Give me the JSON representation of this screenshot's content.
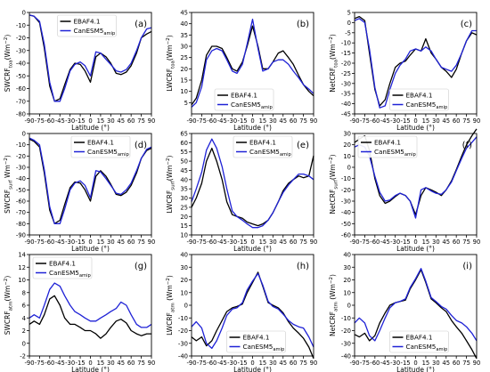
{
  "figure": {
    "xticks": [
      -90,
      -75,
      -60,
      -45,
      -30,
      -15,
      0,
      15,
      30,
      45,
      60,
      75,
      90
    ],
    "xlabel": "Latitude (°)",
    "series_names": [
      "EBAF4.1",
      "CanESM5"
    ],
    "series_subscript": [
      "",
      "amip"
    ],
    "colors": {
      "EBAF4.1": "#000000",
      "CanESM5": "#1f22d6"
    }
  },
  "chart_data": [
    {
      "type": "line",
      "panel": "(a)",
      "ylabel_main": "SWCRF",
      "ylabel_sub": "toa",
      "ylabel_unit": "(Wm",
      "ylim": [
        -80,
        0
      ],
      "yticks": [
        0,
        -10,
        -20,
        -30,
        -40,
        -50,
        -60,
        -70,
        -80
      ],
      "legend": "top-center",
      "x": [
        -90,
        -83,
        -75,
        -68,
        -60,
        -53,
        -45,
        -38,
        -30,
        -23,
        -15,
        -8,
        0,
        8,
        15,
        23,
        30,
        38,
        45,
        53,
        60,
        68,
        75,
        83,
        90
      ],
      "series": [
        {
          "name": "EBAF4.1",
          "values": [
            -2,
            -3,
            -8,
            -28,
            -58,
            -70,
            -68,
            -57,
            -45,
            -40,
            -41,
            -46,
            -55,
            -35,
            -32,
            -35,
            -40,
            -48,
            -49,
            -47,
            -42,
            -32,
            -20,
            -17,
            -15
          ]
        },
        {
          "name": "CanESM5",
          "values": [
            -2,
            -3,
            -7,
            -25,
            -55,
            -70,
            -70,
            -60,
            -46,
            -41,
            -39,
            -42,
            -50,
            -31,
            -32,
            -37,
            -41,
            -46,
            -47,
            -45,
            -40,
            -30,
            -20,
            -13,
            -12
          ]
        }
      ]
    },
    {
      "type": "line",
      "panel": "(b)",
      "ylabel_main": "LWCRF",
      "ylabel_sub": "toa",
      "ylabel_unit": "(Wm",
      "ylim": [
        0,
        45
      ],
      "yticks": [
        5,
        10,
        15,
        20,
        25,
        30,
        35,
        40,
        45
      ],
      "legend": "bottom-left",
      "x": [
        -90,
        -83,
        -75,
        -68,
        -60,
        -53,
        -45,
        -38,
        -30,
        -23,
        -15,
        -8,
        0,
        8,
        15,
        23,
        30,
        38,
        45,
        53,
        60,
        68,
        75,
        83,
        90
      ],
      "series": [
        {
          "name": "EBAF4.1",
          "values": [
            4,
            7,
            15,
            26,
            30,
            30,
            29,
            25,
            20,
            19,
            23,
            30,
            39,
            30,
            20,
            20,
            23,
            27,
            28,
            25,
            22,
            17,
            13,
            10,
            8
          ]
        },
        {
          "name": "CanESM5",
          "values": [
            3,
            5,
            12,
            24,
            28,
            29,
            28,
            24,
            19,
            18,
            22,
            31,
            42,
            29,
            19,
            20,
            23,
            24,
            24,
            22,
            19,
            16,
            13,
            11,
            9
          ]
        }
      ]
    },
    {
      "type": "line",
      "panel": "(c)",
      "ylabel_main": "NetCRF",
      "ylabel_sub": "toa",
      "ylabel_unit": "(Wm",
      "ylim": [
        -45,
        5
      ],
      "yticks": [
        5,
        0,
        -5,
        -10,
        -15,
        -20,
        -25,
        -30,
        -35,
        -40,
        -45
      ],
      "legend": "bottom-center",
      "x": [
        -90,
        -83,
        -75,
        -68,
        -60,
        -53,
        -45,
        -38,
        -30,
        -23,
        -15,
        -8,
        0,
        8,
        15,
        23,
        30,
        38,
        45,
        53,
        60,
        68,
        75,
        83,
        90
      ],
      "series": [
        {
          "name": "EBAF4.1",
          "values": [
            2,
            3,
            1,
            -15,
            -33,
            -41,
            -38,
            -30,
            -22,
            -20,
            -19,
            -16,
            -13,
            -14,
            -8,
            -15,
            -18,
            -22,
            -24,
            -27,
            -23,
            -15,
            -9,
            -5,
            -6
          ]
        },
        {
          "name": "CanESM5",
          "values": [
            1,
            2,
            0,
            -13,
            -32,
            -42,
            -41,
            -33,
            -25,
            -21,
            -18,
            -14,
            -13,
            -14,
            -12,
            -14,
            -18,
            -22,
            -23,
            -24,
            -21,
            -15,
            -9,
            -4,
            -4
          ]
        }
      ]
    },
    {
      "type": "line",
      "panel": "(d)",
      "ylabel_main": "SWCRF",
      "ylabel_sub": "surf",
      "ylabel_unit": " Wm",
      "ylim": [
        -90,
        0
      ],
      "yticks": [
        0,
        -10,
        -20,
        -30,
        -40,
        -50,
        -60,
        -70,
        -80,
        -90
      ],
      "legend": "top-right",
      "x": [
        -90,
        -83,
        -75,
        -68,
        -60,
        -53,
        -45,
        -38,
        -30,
        -23,
        -15,
        -8,
        0,
        8,
        15,
        23,
        30,
        38,
        45,
        53,
        60,
        68,
        75,
        83,
        90
      ],
      "series": [
        {
          "name": "EBAF4.1",
          "values": [
            -5,
            -7,
            -12,
            -35,
            -68,
            -80,
            -77,
            -63,
            -48,
            -43,
            -44,
            -50,
            -60,
            -38,
            -33,
            -38,
            -45,
            -54,
            -55,
            -52,
            -46,
            -35,
            -22,
            -15,
            -13
          ]
        },
        {
          "name": "CanESM5",
          "values": [
            -4,
            -6,
            -10,
            -32,
            -65,
            -80,
            -80,
            -67,
            -50,
            -44,
            -42,
            -46,
            -57,
            -33,
            -34,
            -40,
            -46,
            -53,
            -54,
            -50,
            -44,
            -33,
            -22,
            -14,
            -12
          ]
        }
      ]
    },
    {
      "type": "line",
      "panel": "(e)",
      "ylabel_main": "LWCRF",
      "ylabel_sub": "surf",
      "ylabel_unit": "(Wm",
      "ylim": [
        10,
        65
      ],
      "yticks": [
        10,
        15,
        20,
        25,
        30,
        35,
        40,
        45,
        50,
        55,
        60,
        65
      ],
      "legend": "top-right",
      "x": [
        -90,
        -83,
        -75,
        -68,
        -60,
        -53,
        -45,
        -38,
        -30,
        -23,
        -15,
        -8,
        0,
        8,
        15,
        23,
        30,
        38,
        45,
        53,
        60,
        68,
        75,
        83,
        90
      ],
      "series": [
        {
          "name": "EBAF4.1",
          "values": [
            25,
            30,
            38,
            50,
            57,
            50,
            40,
            28,
            21,
            20,
            19,
            17,
            16,
            15,
            16,
            18,
            22,
            28,
            34,
            38,
            40,
            42,
            41,
            42,
            53
          ]
        },
        {
          "name": "CanESM5",
          "values": [
            28,
            35,
            44,
            56,
            62,
            57,
            47,
            35,
            23,
            20,
            18,
            16,
            14,
            14,
            15,
            18,
            22,
            28,
            33,
            37,
            40,
            43,
            43,
            42,
            40
          ]
        }
      ]
    },
    {
      "type": "line",
      "panel": "(f)",
      "ylabel_main": "NetCRF",
      "ylabel_sub": "surf",
      "ylabel_unit": "(Wm",
      "ylim": [
        -60,
        30
      ],
      "yticks": [
        30,
        20,
        10,
        0,
        -10,
        -20,
        -30,
        -40,
        -50,
        -60
      ],
      "legend": "top-left",
      "x": [
        -90,
        -83,
        -75,
        -68,
        -60,
        -53,
        -45,
        -38,
        -30,
        -23,
        -15,
        -8,
        0,
        8,
        15,
        23,
        30,
        38,
        45,
        53,
        60,
        68,
        75,
        83,
        90
      ],
      "series": [
        {
          "name": "EBAF4.1",
          "values": [
            22,
            25,
            28,
            15,
            -10,
            -25,
            -32,
            -30,
            -26,
            -23,
            -25,
            -30,
            -42,
            -25,
            -18,
            -20,
            -22,
            -25,
            -20,
            -12,
            -2,
            10,
            20,
            28,
            34
          ]
        },
        {
          "name": "CanESM5",
          "values": [
            18,
            20,
            18,
            10,
            -8,
            -22,
            -30,
            -29,
            -25,
            -23,
            -25,
            -30,
            -45,
            -20,
            -18,
            -21,
            -23,
            -24,
            -20,
            -13,
            -3,
            8,
            17,
            22,
            27
          ]
        }
      ]
    },
    {
      "type": "line",
      "panel": "(g)",
      "ylabel_main": "SWCRF",
      "ylabel_sub": "atm",
      "ylabel_unit": "(Wm",
      "ylim": [
        -2,
        14
      ],
      "yticks": [
        14,
        12,
        10,
        8,
        6,
        4,
        2,
        0,
        -2
      ],
      "legend": "top-left",
      "x": [
        -90,
        -83,
        -75,
        -68,
        -60,
        -53,
        -45,
        -38,
        -30,
        -23,
        -15,
        -8,
        0,
        8,
        15,
        23,
        30,
        38,
        45,
        53,
        60,
        68,
        75,
        83,
        90
      ],
      "series": [
        {
          "name": "EBAF4.1",
          "values": [
            3,
            3.5,
            3,
            4.5,
            7,
            7.5,
            6,
            4,
            3,
            3,
            2.5,
            2,
            2,
            1.5,
            0.8,
            1.5,
            2.5,
            3.5,
            3.8,
            3.2,
            2,
            1.5,
            1.2,
            1.5,
            1.5
          ]
        },
        {
          "name": "CanESM5",
          "values": [
            4,
            4.5,
            4,
            6,
            8.5,
            9.5,
            9,
            7.5,
            6,
            5,
            4.5,
            4,
            3.5,
            3.5,
            4,
            4.5,
            5,
            5.5,
            6.5,
            6,
            4.5,
            3,
            2.5,
            2.5,
            3
          ]
        }
      ]
    },
    {
      "type": "line",
      "panel": "(h)",
      "ylabel_main": "LWCRF",
      "ylabel_sub": "atm",
      "ylabel_unit": " (Wm",
      "ylim": [
        -40,
        40
      ],
      "yticks": [
        40,
        30,
        20,
        10,
        0,
        -10,
        -20,
        -30,
        -40
      ],
      "legend": "bottom-center",
      "x": [
        -90,
        -83,
        -75,
        -68,
        -60,
        -53,
        -45,
        -38,
        -30,
        -23,
        -15,
        -8,
        0,
        8,
        15,
        23,
        30,
        38,
        45,
        53,
        60,
        68,
        75,
        83,
        90
      ],
      "series": [
        {
          "name": "EBAF4.1",
          "values": [
            -25,
            -28,
            -25,
            -32,
            -28,
            -20,
            -12,
            -5,
            -2,
            -1,
            1,
            10,
            18,
            26,
            15,
            2,
            0,
            -2,
            -6,
            -13,
            -18,
            -22,
            -26,
            -33,
            -42
          ]
        },
        {
          "name": "CanESM5",
          "values": [
            -17,
            -13,
            -18,
            -30,
            -34,
            -28,
            -18,
            -8,
            -3,
            -2,
            2,
            12,
            19,
            25,
            16,
            3,
            -1,
            -3,
            -7,
            -12,
            -15,
            -17,
            -18,
            -25,
            -33
          ]
        }
      ]
    },
    {
      "type": "line",
      "panel": "(i)",
      "ylabel_main": "NetCRF",
      "ylabel_sub": "atm",
      "ylabel_unit": " (Wm",
      "ylim": [
        -40,
        40
      ],
      "yticks": [
        40,
        30,
        20,
        10,
        0,
        -10,
        -20,
        -30,
        -40
      ],
      "legend": "bottom-center",
      "x": [
        -90,
        -83,
        -75,
        -68,
        -60,
        -53,
        -45,
        -38,
        -30,
        -23,
        -15,
        -8,
        0,
        8,
        15,
        23,
        30,
        38,
        45,
        53,
        60,
        68,
        75,
        83,
        90
      ],
      "series": [
        {
          "name": "EBAF4.1",
          "values": [
            -23,
            -25,
            -22,
            -28,
            -24,
            -14,
            -6,
            0,
            2,
            3,
            4,
            13,
            20,
            28,
            18,
            5,
            2,
            -2,
            -5,
            -12,
            -17,
            -22,
            -28,
            -35,
            -42
          ]
        },
        {
          "name": "CanESM5",
          "values": [
            -14,
            -10,
            -14,
            -24,
            -28,
            -20,
            -10,
            -2,
            2,
            3,
            5,
            14,
            21,
            29,
            19,
            6,
            3,
            -1,
            -3,
            -8,
            -12,
            -14,
            -17,
            -22,
            -28
          ]
        }
      ]
    }
  ]
}
